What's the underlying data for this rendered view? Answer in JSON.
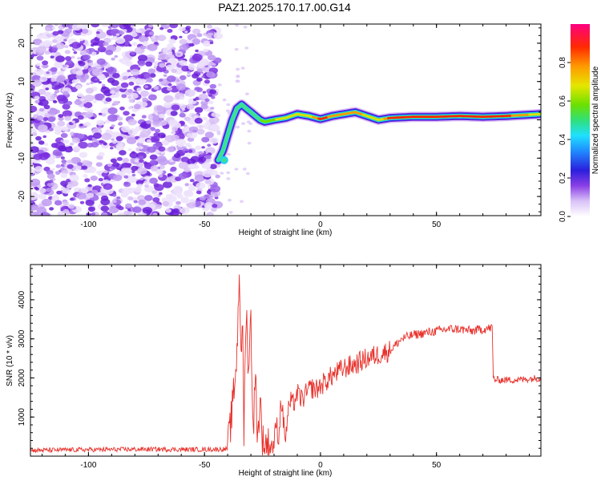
{
  "title": "PAZ1.2025.170.17.00.G14",
  "colors": {
    "snr_line": "#e8312b",
    "axis": "#000000",
    "noise": "#7b2fe0",
    "colormap": [
      "#f0e6ff",
      "#c9a6f5",
      "#7b2fe0",
      "#2f1fe0",
      "#1f6fff",
      "#1fd0ff",
      "#3fe090",
      "#6ce000",
      "#e0e000",
      "#ff9a00",
      "#ff2200",
      "#ff0066"
    ]
  },
  "chart_data": [
    {
      "type": "heatmap",
      "xlabel": "Height of straight line (km)",
      "ylabel": "Frequency (Hz)",
      "xlim": [
        -125,
        95
      ],
      "ylim": [
        -25,
        25
      ],
      "xticks": [
        -100,
        -50,
        0,
        50
      ],
      "yticks": [
        20,
        10,
        0,
        -10,
        -20
      ],
      "grid": false,
      "colorbar": {
        "label": "Normalized spectral amplitude",
        "range": [
          0,
          1
        ],
        "ticks": [
          "0.0",
          "0.2",
          "0.4",
          "0.6",
          "0.8"
        ]
      },
      "noise_region_x": [
        -125,
        -44
      ],
      "ridge": {
        "x": [
          -44,
          -42,
          -40,
          -38,
          -36,
          -34,
          -32,
          -30,
          -28,
          -26,
          -24,
          -20,
          -15,
          -10,
          -5,
          0,
          5,
          10,
          15,
          20,
          25,
          30,
          40,
          50,
          60,
          70,
          80,
          95
        ],
        "y": [
          -10.5,
          -8,
          -4,
          0,
          3,
          4,
          3,
          2,
          1,
          0,
          -0.5,
          0,
          0.5,
          1.5,
          1,
          0.2,
          1,
          1.5,
          2,
          1,
          0,
          0.5,
          0.8,
          0.8,
          1,
          0.8,
          1,
          1.5
        ],
        "amp": [
          0.35,
          0.3,
          0.3,
          0.35,
          0.3,
          0.35,
          0.4,
          0.4,
          0.45,
          0.45,
          0.5,
          0.55,
          0.6,
          0.6,
          0.65,
          0.9,
          0.8,
          0.8,
          0.85,
          0.6,
          0.6,
          0.9,
          0.95,
          0.95,
          0.95,
          0.95,
          0.9,
          0.6
        ]
      }
    },
    {
      "type": "line",
      "xlabel": "Height of straight line (km)",
      "ylabel": "SNR (10 * v/v)",
      "xlim": [
        -125,
        95
      ],
      "ylim": [
        0,
        4900
      ],
      "xticks": [
        -100,
        -50,
        0,
        50
      ],
      "yticks": [
        1000,
        2000,
        3000,
        4000
      ],
      "grid": false,
      "series": [
        {
          "x": [
            -125,
            -110,
            -100,
            -90,
            -80,
            -70,
            -60,
            -50,
            -40,
            -38,
            -36,
            -35,
            -34,
            -33.5,
            -33,
            -32,
            -31,
            -30,
            -29,
            -28,
            -27,
            -26,
            -25,
            -24,
            -22,
            -20,
            -19,
            -18,
            -17,
            -16,
            -15,
            -14,
            -13,
            -12,
            -10,
            -8,
            -6,
            -4,
            -2,
            0,
            5,
            10,
            15,
            20,
            25,
            30,
            35,
            40,
            45,
            50,
            55,
            60,
            65,
            70,
            74,
            74.5,
            75,
            80,
            85,
            90,
            95
          ],
          "y": [
            150,
            160,
            165,
            170,
            175,
            175,
            170,
            170,
            180,
            1200,
            2600,
            4800,
            2300,
            3400,
            600,
            3800,
            2200,
            3500,
            700,
            2000,
            450,
            1500,
            350,
            350,
            250,
            300,
            900,
            400,
            1500,
            900,
            450,
            1100,
            1400,
            1300,
            1600,
            1450,
            1600,
            1750,
            1700,
            1800,
            2050,
            2250,
            2350,
            2500,
            2600,
            2700,
            3000,
            3100,
            3150,
            3200,
            3250,
            3250,
            3200,
            3250,
            3280,
            2000,
            1950,
            1950,
            1950,
            1980,
            2000
          ]
        }
      ]
    }
  ]
}
